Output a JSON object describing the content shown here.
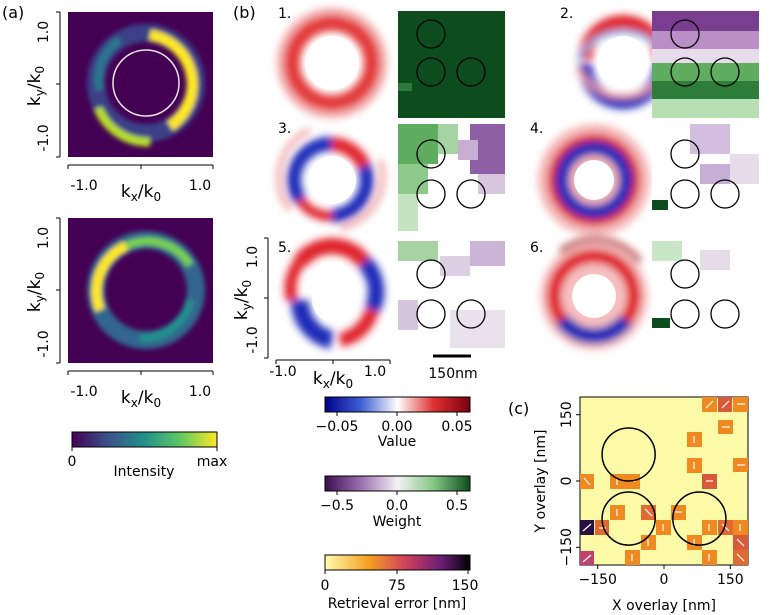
{
  "panel_labels": {
    "a": "(a)",
    "b": "(b)",
    "c": "(c)"
  },
  "k_axis": {
    "xlabel_main": "k",
    "xlabel_sub": "x",
    "ylabel_main": "k",
    "ylabel_sub": "y",
    "denom_main": "/k",
    "denom_sub": "0",
    "tick_neg": "-1.0",
    "tick_pos": "1.0"
  },
  "subpanel_numbers": [
    "1.",
    "2.",
    "3.",
    "4.",
    "5.",
    "6."
  ],
  "scalebar_label": "150nm",
  "colorbars": {
    "intensity": {
      "label": "Intensity",
      "min_label": "0",
      "max_label": "max",
      "colors": [
        "#440154",
        "#3b528b",
        "#21918c",
        "#5ec962",
        "#fde725"
      ]
    },
    "value": {
      "label": "Value",
      "ticks": [
        "−0.05",
        "0.00",
        "0.05"
      ],
      "colors": [
        "#00008b",
        "#3f5fd4",
        "#ffffff",
        "#e03030",
        "#7a0010"
      ]
    },
    "weight": {
      "label": "Weight",
      "ticks": [
        "−0.5",
        "0.0",
        "0.5"
      ],
      "colors": [
        "#3d0e4f",
        "#9b6fb0",
        "#f5f2f5",
        "#84c884",
        "#0d4d1d"
      ]
    },
    "error": {
      "label": "Retrieval error [nm]",
      "ticks": [
        "0",
        "75",
        "150"
      ],
      "colors": [
        "#fffcb0",
        "#f6a020",
        "#d3425a",
        "#6a1e78",
        "#000000"
      ]
    }
  },
  "overlay_map": {
    "xlabel": "X overlay [nm]",
    "ylabel": "Y overlay [nm]",
    "xticks": [
      {
        "v": -150,
        "label": "−150"
      },
      {
        "v": 0,
        "label": "0"
      },
      {
        "v": 150,
        "label": "150"
      }
    ],
    "yticks": [
      {
        "v": -150,
        "label": "−150"
      },
      {
        "v": 0,
        "label": "0"
      },
      {
        "v": 150,
        "label": "150"
      }
    ],
    "range": [
      -190,
      190
    ],
    "background": "#fdfba8",
    "circles": [
      {
        "cx": -80,
        "cy": 60,
        "r": 60
      },
      {
        "cx": -80,
        "cy": -85,
        "r": 60
      },
      {
        "cx": 80,
        "cy": -85,
        "r": 60
      }
    ]
  }
}
